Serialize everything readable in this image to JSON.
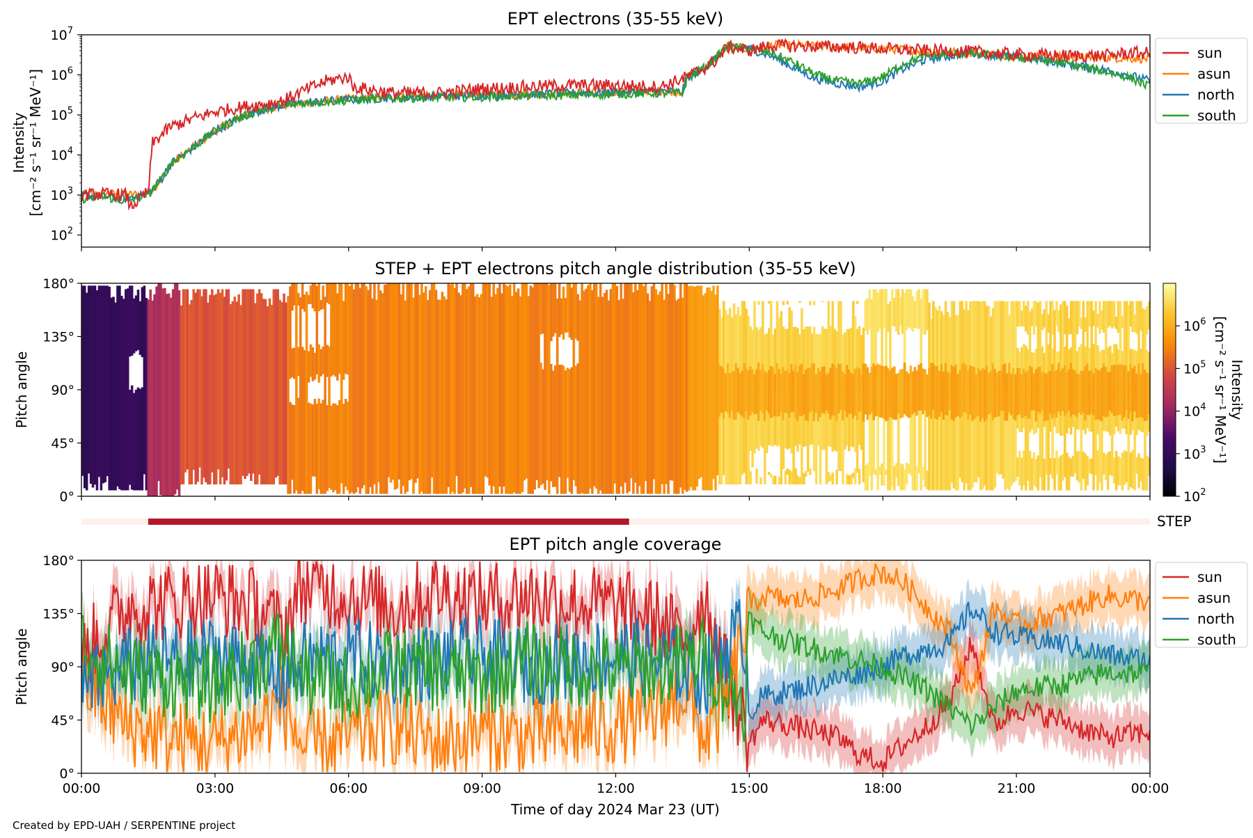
{
  "footer": "Created by EPD-UAH / SERPENTINE project",
  "colors": {
    "sun": "#d62728",
    "asun": "#ff7f0e",
    "north": "#1f77b4",
    "south": "#2ca02c",
    "step_bar": "#b2182b",
    "step_track": "#fdf0ec"
  },
  "chart_data": [
    {
      "id": "intensity",
      "type": "line",
      "title": "EPT electrons (35-55 keV)",
      "ylabel_line1": "Intensity",
      "ylabel_line2": "[cm⁻² s⁻¹ sr⁻¹ MeV⁻¹]",
      "yscale": "log",
      "ylim": [
        50,
        10000000
      ],
      "yticks": [
        {
          "v": 100,
          "base": "10",
          "exp": "2"
        },
        {
          "v": 1000,
          "base": "10",
          "exp": "3"
        },
        {
          "v": 10000,
          "base": "10",
          "exp": "4"
        },
        {
          "v": 100000,
          "base": "10",
          "exp": "5"
        },
        {
          "v": 1000000,
          "base": "10",
          "exp": "6"
        },
        {
          "v": 10000000,
          "base": "10",
          "exp": "7"
        }
      ],
      "xlim": [
        0,
        24
      ],
      "legend": {
        "placement": "outside-right",
        "entries": [
          "sun",
          "asun",
          "north",
          "south"
        ]
      },
      "series": [
        {
          "name": "sun",
          "x": [
            0,
            0.5,
            1,
            1.1,
            1.5,
            1.6,
            2,
            2.5,
            3,
            3.5,
            4,
            4.5,
            5,
            5.5,
            6,
            6.1,
            7,
            8,
            9,
            10,
            11,
            12,
            13,
            13.5,
            13.6,
            14,
            14.3,
            14.5,
            15,
            15.5,
            16,
            17,
            18,
            19,
            20,
            21,
            22,
            23,
            23.5,
            24
          ],
          "y": [
            1000,
            1050,
            1000,
            500,
            1200,
            20000,
            50000,
            80000,
            120000,
            150000,
            180000,
            220000,
            400000,
            700000,
            900000,
            500000,
            350000,
            350000,
            450000,
            500000,
            550000,
            550000,
            500000,
            800000,
            900000,
            1500000,
            2500000,
            5000000,
            4000000,
            5500000,
            5200000,
            5000000,
            4500000,
            4000000,
            3800000,
            3200000,
            3000000,
            3000000,
            3500000,
            3500000
          ]
        },
        {
          "name": "asun",
          "x": [
            0,
            0.5,
            1,
            1.5,
            1.8,
            2,
            2.5,
            3,
            3.5,
            4,
            4.5,
            5,
            6,
            7,
            8,
            9,
            10,
            11,
            12,
            13,
            13.5,
            13.6,
            14,
            14.3,
            14.5,
            15,
            15.5,
            16,
            17,
            18,
            19,
            20,
            21,
            22,
            23,
            24
          ],
          "y": [
            1000,
            1100,
            1000,
            1100,
            2500,
            6000,
            15000,
            40000,
            80000,
            130000,
            170000,
            200000,
            250000,
            280000,
            300000,
            320000,
            340000,
            360000,
            380000,
            400000,
            380000,
            900000,
            1500000,
            3000000,
            5000000,
            4500000,
            5500000,
            5500000,
            5000000,
            4500000,
            4000000,
            3500000,
            3000000,
            2800000,
            2700000,
            2500000
          ]
        },
        {
          "name": "north",
          "x": [
            0,
            0.5,
            1,
            1.5,
            1.8,
            2,
            2.5,
            3,
            3.5,
            4,
            4.5,
            5,
            6,
            7,
            8,
            9,
            10,
            11,
            12,
            13,
            13.5,
            13.6,
            14,
            14.3,
            14.5,
            15,
            15.5,
            16,
            16.5,
            17,
            17.5,
            18,
            18.5,
            19,
            20,
            21,
            22,
            23,
            23.5,
            24
          ],
          "y": [
            1000,
            900,
            800,
            1100,
            2500,
            6000,
            15000,
            40000,
            80000,
            130000,
            170000,
            200000,
            240000,
            270000,
            290000,
            310000,
            330000,
            350000,
            370000,
            390000,
            370000,
            850000,
            1500000,
            3000000,
            5000000,
            4500000,
            3000000,
            1500000,
            800000,
            600000,
            500000,
            700000,
            1500000,
            2500000,
            3500000,
            2800000,
            2000000,
            1300000,
            1000000,
            700000
          ]
        },
        {
          "name": "south",
          "x": [
            0,
            0.5,
            1,
            1.5,
            1.8,
            2,
            2.5,
            3,
            3.5,
            4,
            4.5,
            5,
            6,
            7,
            8,
            9,
            10,
            11,
            12,
            13,
            13.5,
            13.6,
            14,
            14.3,
            14.5,
            15,
            15.5,
            16,
            16.5,
            17,
            17.5,
            18,
            18.5,
            19,
            20,
            21,
            22,
            23,
            23.5,
            24
          ],
          "y": [
            800,
            900,
            700,
            1000,
            2500,
            6000,
            15000,
            40000,
            80000,
            130000,
            170000,
            200000,
            230000,
            260000,
            270000,
            280000,
            300000,
            310000,
            330000,
            350000,
            340000,
            800000,
            1500000,
            3000000,
            5000000,
            4500000,
            3500000,
            2000000,
            1000000,
            700000,
            600000,
            900000,
            2000000,
            3000000,
            3500000,
            2700000,
            2000000,
            1200000,
            900000,
            500000
          ]
        }
      ]
    },
    {
      "id": "pad",
      "type": "heatmap",
      "title": "STEP + EPT electrons pitch angle distribution (35-55 keV)",
      "ylabel": "Pitch angle",
      "ylim": [
        0,
        180
      ],
      "yticks": [
        "0°",
        "45°",
        "90°",
        "135°",
        "180°"
      ],
      "xlim": [
        0,
        24
      ],
      "colorbar": {
        "label_line1": "Intensity",
        "label_line2": "[cm⁻² s⁻¹ sr⁻¹ MeV⁻¹]",
        "scale": "log",
        "range": [
          100,
          10000000
        ],
        "ticks": [
          {
            "v": 100,
            "base": "10",
            "exp": "2"
          },
          {
            "v": 1000,
            "base": "10",
            "exp": "3"
          },
          {
            "v": 10000,
            "base": "10",
            "exp": "4"
          },
          {
            "v": 100000,
            "base": "10",
            "exp": "5"
          },
          {
            "v": 1000000,
            "base": "10",
            "exp": "6"
          }
        ]
      },
      "segments": [
        {
          "t0": 0,
          "t1": 1.5,
          "lo": 5,
          "hi": 178,
          "intensity": 1000
        },
        {
          "t0": 1.5,
          "t1": 2.2,
          "lo": 0,
          "hi": 180,
          "intensity": 20000
        },
        {
          "t0": 2.2,
          "t1": 4.6,
          "lo": 10,
          "hi": 175,
          "intensity": 100000
        },
        {
          "t0": 4.6,
          "t1": 13.6,
          "lo": 2,
          "hi": 180,
          "intensity": 300000
        },
        {
          "t0": 13.6,
          "t1": 14.3,
          "lo": 5,
          "hi": 178,
          "intensity": 700000
        },
        {
          "t0": 14.3,
          "t1": 17.6,
          "lo": 10,
          "hi": 165,
          "intensity": 3000000
        },
        {
          "t0": 17.6,
          "t1": 19.0,
          "lo": 5,
          "hi": 175,
          "intensity": 4000000
        },
        {
          "t0": 19.0,
          "t1": 24,
          "lo": 5,
          "hi": 165,
          "intensity": 3000000
        }
      ],
      "holes": [
        {
          "t0": 1.0,
          "t1": 1.4,
          "lo": 90,
          "hi": 120
        },
        {
          "t0": 4.6,
          "t1": 6.0,
          "lo": 80,
          "hi": 100
        },
        {
          "t0": 4.7,
          "t1": 5.6,
          "lo": 125,
          "hi": 160
        },
        {
          "t0": 10.3,
          "t1": 11.2,
          "lo": 110,
          "hi": 135
        },
        {
          "t0": 15.0,
          "t1": 17.6,
          "lo": 20,
          "hi": 40
        },
        {
          "t0": 15.0,
          "t1": 17.6,
          "lo": 90,
          "hi": 100
        },
        {
          "t0": 15.0,
          "t1": 17.6,
          "lo": 140,
          "hi": 165
        },
        {
          "t0": 17.6,
          "t1": 19.0,
          "lo": 100,
          "hi": 140
        },
        {
          "t0": 17.6,
          "t1": 19.0,
          "lo": 25,
          "hi": 75
        },
        {
          "t0": 19.3,
          "t1": 21.0,
          "lo": 85,
          "hi": 100
        },
        {
          "t0": 21.0,
          "t1": 24,
          "lo": 85,
          "hi": 95
        },
        {
          "t0": 21.0,
          "t1": 24,
          "lo": 125,
          "hi": 140
        },
        {
          "t0": 21.0,
          "t1": 24,
          "lo": 35,
          "hi": 55
        }
      ],
      "overlay_lines": [
        {
          "lo": 68,
          "hi": 108,
          "t0": 14.3,
          "t1": 24,
          "intensity": 800000
        }
      ]
    },
    {
      "id": "step",
      "type": "bar",
      "label": "STEP",
      "coverage": [
        {
          "t0": 1.5,
          "t1": 12.3
        }
      ]
    },
    {
      "id": "coverage",
      "type": "line",
      "title": "EPT pitch angle coverage",
      "ylabel": "Pitch angle",
      "xlabel": "Time of day 2024 Mar 23 (UT)",
      "ylim": [
        0,
        180
      ],
      "yticks": [
        "0°",
        "45°",
        "90°",
        "135°",
        "180°"
      ],
      "xlim": [
        0,
        24
      ],
      "xticks": [
        "00:00",
        "03:00",
        "06:00",
        "09:00",
        "12:00",
        "15:00",
        "18:00",
        "21:00",
        "00:00"
      ],
      "legend": {
        "placement": "outside-right",
        "entries": [
          "sun",
          "asun",
          "north",
          "south"
        ]
      },
      "band_halfwidth": 20,
      "series": [
        {
          "name": "sun",
          "x": [
            0,
            1,
            2,
            3,
            4,
            4.5,
            5,
            6,
            7,
            8,
            9,
            10,
            11,
            12,
            13,
            13.5,
            14,
            14.5,
            14.9,
            15,
            15.3,
            16,
            17,
            17.5,
            18,
            18.5,
            19,
            19.5,
            20,
            20.5,
            21,
            22,
            23,
            24
          ],
          "y": [
            100,
            140,
            145,
            150,
            140,
            120,
            160,
            150,
            140,
            155,
            145,
            150,
            145,
            140,
            130,
            110,
            150,
            80,
            40,
            25,
            45,
            40,
            30,
            15,
            10,
            25,
            40,
            60,
            110,
            40,
            55,
            45,
            30,
            35
          ]
        },
        {
          "name": "asun",
          "x": [
            0,
            1,
            2,
            3,
            4,
            4.5,
            5,
            6,
            7,
            8,
            9,
            10,
            11,
            12,
            13,
            13.5,
            14,
            14.5,
            14.9,
            15,
            15.3,
            16,
            17,
            17.5,
            18,
            18.5,
            19,
            19.5,
            20,
            20.5,
            21,
            22,
            23,
            24
          ],
          "y": [
            80,
            40,
            30,
            25,
            40,
            60,
            20,
            30,
            40,
            25,
            35,
            30,
            35,
            40,
            50,
            70,
            30,
            60,
            120,
            140,
            150,
            145,
            155,
            165,
            170,
            160,
            140,
            120,
            65,
            140,
            125,
            135,
            150,
            145
          ]
        },
        {
          "name": "north",
          "x": [
            0,
            1,
            2,
            3,
            4,
            4.5,
            5,
            6,
            7,
            8,
            9,
            10,
            11,
            12,
            13,
            13.5,
            14,
            14.5,
            14.9,
            15,
            15.3,
            16,
            17,
            17.5,
            18,
            18.5,
            19,
            19.5,
            20,
            20.5,
            21,
            22,
            23,
            24
          ],
          "y": [
            70,
            90,
            95,
            100,
            90,
            80,
            95,
            100,
            90,
            95,
            100,
            90,
            95,
            100,
            95,
            90,
            80,
            110,
            120,
            50,
            65,
            70,
            80,
            85,
            90,
            100,
            105,
            110,
            140,
            120,
            115,
            110,
            100,
            95
          ]
        },
        {
          "name": "south",
          "x": [
            0,
            1,
            2,
            3,
            4,
            4.5,
            5,
            6,
            7,
            8,
            9,
            10,
            11,
            12,
            13,
            13.5,
            14,
            14.5,
            14.9,
            15,
            15.3,
            16,
            17,
            17.5,
            18,
            18.5,
            19,
            19.5,
            20,
            20.5,
            21,
            22,
            23,
            24
          ],
          "y": [
            110,
            85,
            80,
            75,
            95,
            110,
            80,
            75,
            90,
            85,
            80,
            95,
            90,
            85,
            90,
            95,
            100,
            70,
            60,
            130,
            120,
            110,
            100,
            95,
            90,
            80,
            70,
            55,
            40,
            55,
            70,
            75,
            85,
            85
          ]
        }
      ]
    }
  ]
}
